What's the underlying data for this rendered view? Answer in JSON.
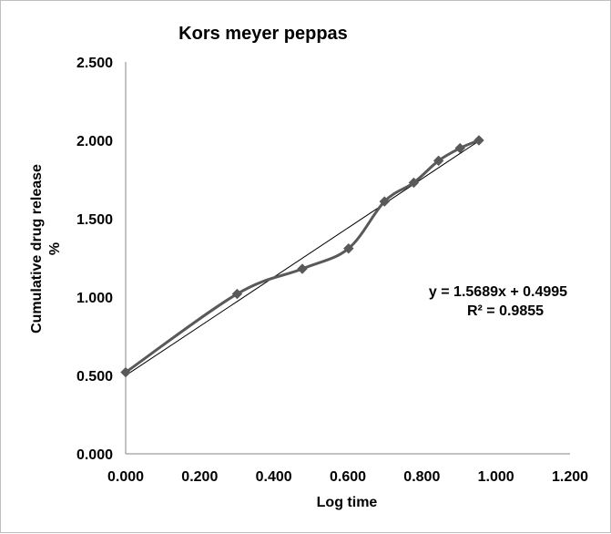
{
  "chart_data": {
    "type": "scatter",
    "title": "Kors meyer peppas",
    "xlabel": "Log time",
    "ylabel_line1": "Cumulative drug release",
    "ylabel_line2": "%",
    "xlim": [
      0,
      1.2
    ],
    "ylim": [
      0,
      2.5
    ],
    "xticks": [
      "0.000",
      "0.200",
      "0.400",
      "0.600",
      "0.800",
      "1.000",
      "1.200"
    ],
    "yticks": [
      "0.000",
      "0.500",
      "1.000",
      "1.500",
      "2.000",
      "2.500"
    ],
    "grid": false,
    "legend": "none",
    "series": [
      {
        "x": [
          0.0,
          0.301,
          0.477,
          0.602,
          0.699,
          0.778,
          0.845,
          0.903,
          0.954
        ],
        "y": [
          0.52,
          1.02,
          1.18,
          1.31,
          1.61,
          1.73,
          1.87,
          1.95,
          2.0
        ],
        "color": "#595959",
        "smooth": true,
        "marker": "diamond"
      }
    ],
    "trendline": {
      "slope": 1.5689,
      "intercept": 0.4995,
      "x_range": [
        0.0,
        0.954
      ],
      "color": "#000000"
    },
    "annotations": [
      "y = 1.5689x + 0.4995",
      "R² = 0.9855"
    ]
  }
}
